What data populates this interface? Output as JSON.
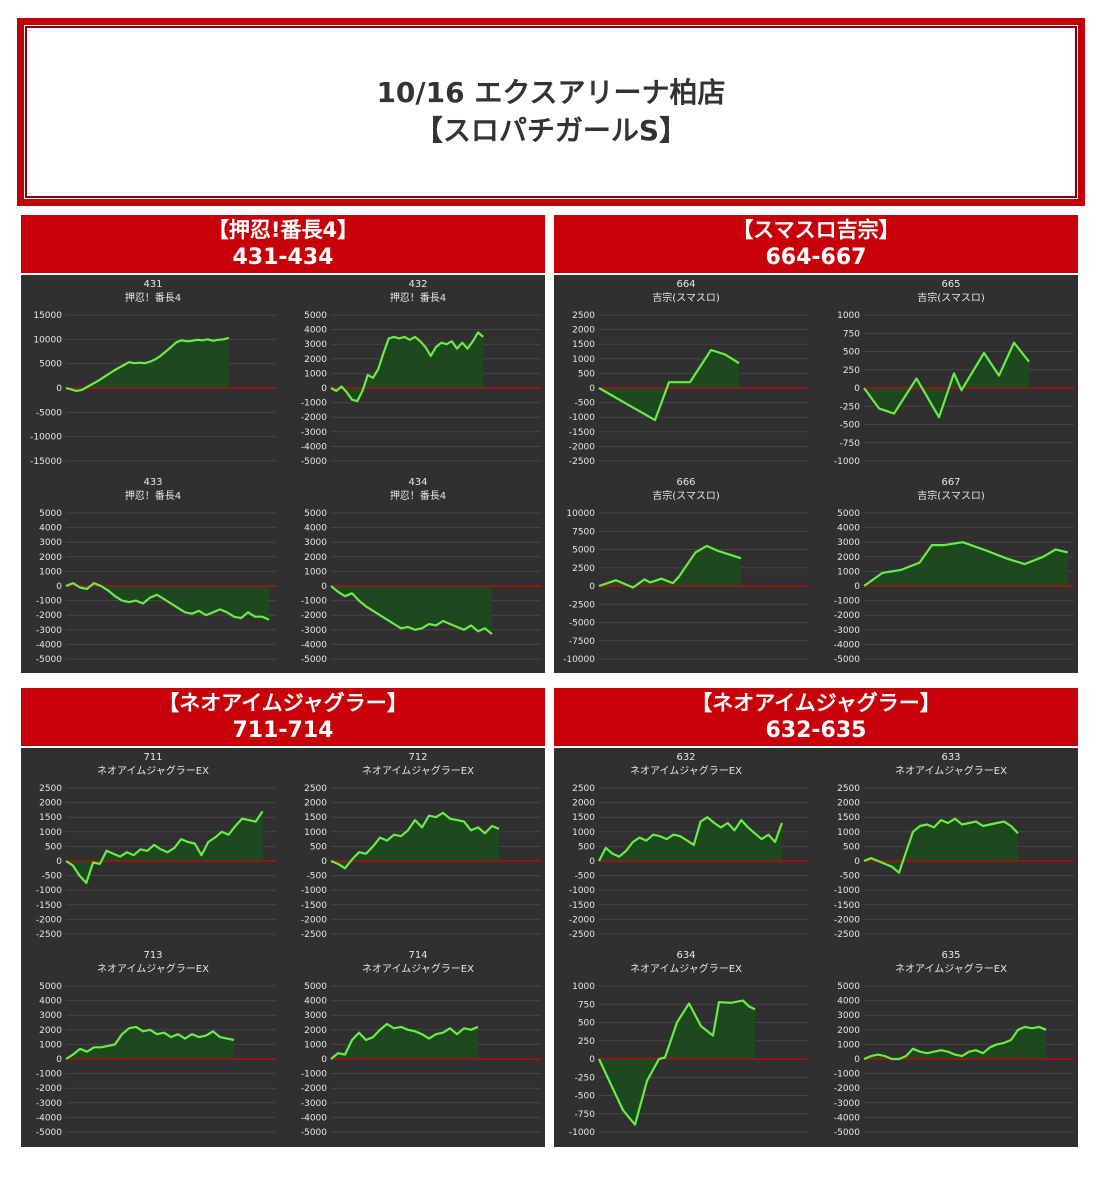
{
  "header": {
    "line1": "10/16 エクスアリーナ柏店",
    "line2": "【スロパチガールS】"
  },
  "colors": {
    "line": "#66ee44",
    "fill": "#1d4a1d",
    "zero": "#aa1111",
    "panel_bg": "#303030",
    "header_red": "#c80009",
    "text": "#e6e6e6"
  },
  "groups": [
    {
      "title": "【押忍!番長4】",
      "range": "431-434"
    },
    {
      "title": "【スマスロ吉宗】",
      "range": "664-667"
    },
    {
      "title": "【ネオアイムジャグラー】",
      "range": "711-714"
    },
    {
      "title": "【ネオアイムジャグラー】",
      "range": "632-635"
    }
  ],
  "chart_data": [
    {
      "type": "area",
      "machine": "431",
      "model": "押忍！番長4",
      "ylim": [
        -15000,
        15000
      ],
      "ticks": [
        15000,
        10000,
        5000,
        0,
        -5000,
        -10000,
        -15000
      ],
      "grid": true,
      "y": [
        0,
        -300,
        -600,
        -400,
        200,
        800,
        1400,
        2100,
        2800,
        3500,
        4100,
        4700,
        5300,
        5100,
        5200,
        5100,
        5400,
        5900,
        6600,
        7500,
        8400,
        9400,
        9800,
        9600,
        9700,
        9900,
        9800,
        10000,
        9700,
        9900,
        10000,
        10300
      ],
      "xmax": 40
    },
    {
      "type": "area",
      "machine": "432",
      "model": "押忍！番長4",
      "ylim": [
        -5000,
        5000
      ],
      "ticks": [
        5000,
        4000,
        3000,
        2000,
        1000,
        0,
        -1000,
        -2000,
        -3000,
        -4000,
        -5000
      ],
      "grid": true,
      "y": [
        0,
        -200,
        100,
        -300,
        -800,
        -900,
        -200,
        900,
        700,
        1300,
        2400,
        3400,
        3500,
        3400,
        3500,
        3300,
        3500,
        3200,
        2800,
        2200,
        2800,
        3100,
        3000,
        3200,
        2700,
        3100,
        2700,
        3200,
        3800,
        3500
      ],
      "xmax": 40
    },
    {
      "type": "area",
      "machine": "433",
      "model": "押忍！番長4",
      "ylim": [
        -5000,
        5000
      ],
      "ticks": [
        5000,
        4000,
        3000,
        2000,
        1000,
        0,
        -1000,
        -2000,
        -3000,
        -4000,
        -5000
      ],
      "grid": true,
      "y": [
        0,
        200,
        -100,
        -200,
        200,
        0,
        -300,
        -700,
        -1000,
        -1100,
        -1000,
        -1200,
        -800,
        -600,
        -900,
        -1200,
        -1500,
        -1800,
        -1900,
        -1700,
        -2000,
        -1800,
        -1600,
        -1800,
        -2100,
        -2200,
        -1800,
        -2100,
        -2100,
        -2300
      ],
      "xmax": 30
    },
    {
      "type": "area",
      "machine": "434",
      "model": "押忍！番長4",
      "ylim": [
        -5000,
        5000
      ],
      "ticks": [
        5000,
        4000,
        3000,
        2000,
        1000,
        0,
        -1000,
        -2000,
        -3000,
        -4000,
        -5000
      ],
      "grid": true,
      "y": [
        0,
        -400,
        -700,
        -500,
        -1000,
        -1400,
        -1700,
        -2000,
        -2300,
        -2600,
        -2900,
        -2800,
        -3000,
        -2900,
        -2600,
        -2700,
        -2400,
        -2600,
        -2800,
        -3000,
        -2700,
        -3100,
        -2900,
        -3300
      ],
      "xmax": 30
    },
    {
      "type": "area",
      "machine": "664",
      "model": "吉宗(スマスロ)",
      "ylim": [
        -2500,
        2500
      ],
      "ticks": [
        2500,
        2000,
        1500,
        1000,
        500,
        0,
        -500,
        -1000,
        -1500,
        -2000,
        -2500
      ],
      "grid": true,
      "points": [
        [
          0,
          0
        ],
        [
          8,
          -1100
        ],
        [
          10,
          200
        ],
        [
          13,
          200
        ],
        [
          16,
          1300
        ],
        [
          18,
          1150
        ],
        [
          20,
          850
        ]
      ],
      "xmax": 30
    },
    {
      "type": "area",
      "machine": "665",
      "model": "吉宗(スマスロ)",
      "ylim": [
        -1000,
        1000
      ],
      "ticks": [
        1000,
        750,
        500,
        250,
        0,
        -250,
        -500,
        -750,
        -1000
      ],
      "grid": true,
      "points": [
        [
          0,
          0
        ],
        [
          2,
          -280
        ],
        [
          4,
          -350
        ],
        [
          7,
          130
        ],
        [
          10,
          -400
        ],
        [
          12,
          200
        ],
        [
          13,
          -30
        ],
        [
          16,
          480
        ],
        [
          18,
          170
        ],
        [
          20,
          620
        ],
        [
          22,
          360
        ]
      ],
      "xmax": 28
    },
    {
      "type": "area",
      "machine": "666",
      "model": "吉宗(スマスロ)",
      "ylim": [
        -10000,
        10000
      ],
      "ticks": [
        10000,
        7500,
        5000,
        2500,
        0,
        -2500,
        -5000,
        -7500,
        -10000
      ],
      "grid": true,
      "points": [
        [
          0,
          0
        ],
        [
          3,
          800
        ],
        [
          6,
          -200
        ],
        [
          8,
          900
        ],
        [
          9,
          500
        ],
        [
          11,
          1000
        ],
        [
          13,
          400
        ],
        [
          14,
          1200
        ],
        [
          17,
          4600
        ],
        [
          19,
          5500
        ],
        [
          21,
          4800
        ],
        [
          23,
          4300
        ],
        [
          25,
          3800
        ]
      ],
      "xmax": 37
    },
    {
      "type": "area",
      "machine": "667",
      "model": "吉宗(スマスロ)",
      "ylim": [
        -5000,
        5000
      ],
      "ticks": [
        5000,
        4000,
        3000,
        2000,
        1000,
        0,
        -1000,
        -2000,
        -3000,
        -4000,
        -5000
      ],
      "grid": true,
      "points": [
        [
          0,
          0
        ],
        [
          3,
          900
        ],
        [
          6,
          1100
        ],
        [
          9,
          1600
        ],
        [
          11,
          2800
        ],
        [
          13,
          2800
        ],
        [
          16,
          3000
        ],
        [
          20,
          2400
        ],
        [
          23,
          1900
        ],
        [
          26,
          1500
        ],
        [
          29,
          2000
        ],
        [
          31,
          2500
        ],
        [
          33,
          2300
        ]
      ],
      "xmax": 34
    },
    {
      "type": "area",
      "machine": "711",
      "model": "ネオアイムジャグラーEX",
      "ylim": [
        -2500,
        2500
      ],
      "ticks": [
        2500,
        2000,
        1500,
        1000,
        500,
        0,
        -500,
        -1000,
        -1500,
        -2000,
        -2500
      ],
      "grid": true,
      "y": [
        0,
        -150,
        -500,
        -750,
        -50,
        -100,
        350,
        250,
        150,
        300,
        200,
        400,
        350,
        550,
        400,
        300,
        450,
        750,
        650,
        600,
        200,
        650,
        800,
        1000,
        900,
        1200,
        1450,
        1400,
        1350,
        1700
      ],
      "xmax": 31
    },
    {
      "type": "area",
      "machine": "712",
      "model": "ネオアイムジャグラーEX",
      "ylim": [
        -2500,
        2500
      ],
      "ticks": [
        2500,
        2000,
        1500,
        1000,
        500,
        0,
        -500,
        -1000,
        -1500,
        -2000,
        -2500
      ],
      "grid": true,
      "y": [
        0,
        -100,
        -250,
        50,
        300,
        250,
        500,
        800,
        700,
        900,
        850,
        1050,
        1400,
        1150,
        1550,
        1500,
        1650,
        1450,
        1400,
        1350,
        1050,
        1150,
        950,
        1200,
        1100
      ],
      "xmax": 30
    },
    {
      "type": "area",
      "machine": "713",
      "model": "ネオアイムジャグラーEX",
      "ylim": [
        -5000,
        5000
      ],
      "ticks": [
        5000,
        4000,
        3000,
        2000,
        1000,
        0,
        -1000,
        -2000,
        -3000,
        -4000,
        -5000
      ],
      "grid": true,
      "y": [
        0,
        300,
        700,
        500,
        800,
        800,
        900,
        1000,
        1700,
        2100,
        2200,
        1900,
        2000,
        1700,
        1800,
        1500,
        1700,
        1400,
        1700,
        1500,
        1600,
        1900,
        1500,
        1400,
        1300
      ],
      "xmax": 30
    },
    {
      "type": "area",
      "machine": "714",
      "model": "ネオアイムジャグラーEX",
      "ylim": [
        -5000,
        5000
      ],
      "ticks": [
        5000,
        4000,
        3000,
        2000,
        1000,
        0,
        -1000,
        -2000,
        -3000,
        -4000,
        -5000
      ],
      "grid": true,
      "y": [
        0,
        400,
        300,
        1300,
        1800,
        1300,
        1500,
        2000,
        2400,
        2100,
        2200,
        2000,
        1900,
        1700,
        1400,
        1700,
        1800,
        2100,
        1700,
        2100,
        2000,
        2200
      ],
      "xmax": 30
    },
    {
      "type": "area",
      "machine": "632",
      "model": "ネオアイムジャグラーEX",
      "ylim": [
        -2500,
        2500
      ],
      "ticks": [
        2500,
        2000,
        1500,
        1000,
        500,
        0,
        -500,
        -1000,
        -1500,
        -2000,
        -2500
      ],
      "grid": true,
      "y": [
        0,
        450,
        250,
        150,
        350,
        650,
        800,
        700,
        900,
        850,
        750,
        900,
        850,
        700,
        550,
        1350,
        1500,
        1300,
        1150,
        1300,
        1050,
        1400,
        1150,
        950,
        750,
        900,
        650,
        1300
      ],
      "xmax": 31
    },
    {
      "type": "area",
      "machine": "633",
      "model": "ネオアイムジャグラーEX",
      "ylim": [
        -2500,
        2500
      ],
      "ticks": [
        2500,
        2000,
        1500,
        1000,
        500,
        0,
        -500,
        -1000,
        -1500,
        -2000,
        -2500
      ],
      "grid": true,
      "y": [
        0,
        100,
        0,
        -100,
        -200,
        -400,
        300,
        1000,
        1200,
        1250,
        1150,
        1400,
        1300,
        1450,
        1250,
        1300,
        1350,
        1200,
        1250,
        1300,
        1350,
        1200,
        950
      ],
      "xmax": 30
    },
    {
      "type": "area",
      "machine": "634",
      "model": "ネオアイムジャグラーEX",
      "ylim": [
        -1000,
        1000
      ],
      "ticks": [
        1000,
        750,
        500,
        250,
        0,
        -250,
        -500,
        -750,
        -1000
      ],
      "grid": true,
      "points": [
        [
          0,
          0
        ],
        [
          2,
          -350
        ],
        [
          4,
          -700
        ],
        [
          5,
          -800
        ],
        [
          6,
          -900
        ],
        [
          8,
          -300
        ],
        [
          10,
          0
        ],
        [
          11,
          20
        ],
        [
          13,
          500
        ],
        [
          15,
          760
        ],
        [
          17,
          450
        ],
        [
          19,
          320
        ],
        [
          20,
          780
        ],
        [
          22,
          770
        ],
        [
          24,
          800
        ],
        [
          25,
          720
        ],
        [
          26,
          680
        ]
      ],
      "xmax": 35
    },
    {
      "type": "area",
      "machine": "635",
      "model": "ネオアイムジャグラーEX",
      "ylim": [
        -5000,
        5000
      ],
      "ticks": [
        5000,
        4000,
        3000,
        2000,
        1000,
        0,
        -1000,
        -2000,
        -3000,
        -4000,
        -5000
      ],
      "grid": true,
      "y": [
        0,
        200,
        300,
        200,
        0,
        0,
        200,
        700,
        500,
        400,
        500,
        600,
        500,
        300,
        200,
        500,
        600,
        400,
        800,
        1000,
        1100,
        1300,
        2000,
        2200,
        2100,
        2200,
        2000
      ],
      "xmax": 30
    }
  ]
}
